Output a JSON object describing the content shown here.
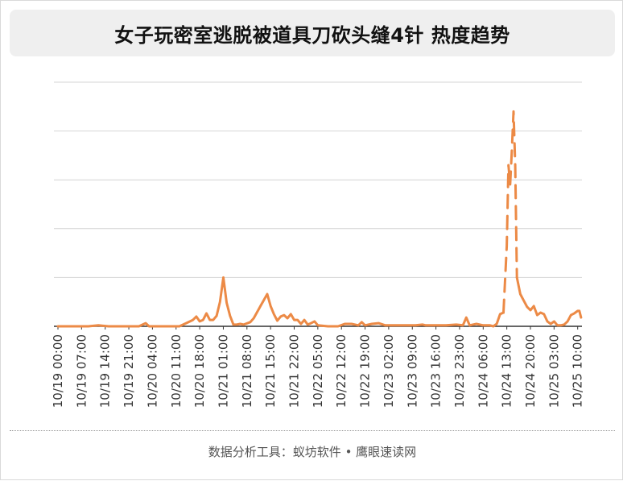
{
  "title": "女子玩密室逃脱被道具刀砍头缝4针 热度趋势",
  "footer": "数据分析工具：蚁坊软件 • 鹰眼速读网",
  "colors": {
    "line": "#ec8a46",
    "grid": "#d4d4d4",
    "axis": "#333333",
    "title_bg": "#efefef"
  },
  "chart_data": {
    "type": "line",
    "title": "女子玩密室逃脱被道具刀砍头缝4针 热度趋势",
    "xlabel": "",
    "ylabel": "",
    "ylim": [
      0,
      100
    ],
    "grid": true,
    "y_tick_labels_shown": false,
    "x_tick_labels": [
      "10/19 00:00",
      "10/19 07:00",
      "10/19 14:00",
      "10/19 21:00",
      "10/20 04:00",
      "10/20 11:00",
      "10/20 18:00",
      "10/21 01:00",
      "10/21 08:00",
      "10/21 15:00",
      "10/21 22:00",
      "10/22 05:00",
      "10/22 12:00",
      "10/22 19:00",
      "10/23 02:00",
      "10/23 09:00",
      "10/23 16:00",
      "10/23 23:00",
      "10/24 06:00",
      "10/24 13:00",
      "10/24 20:00",
      "10/25 03:00",
      "10/25 10:00"
    ],
    "series": [
      {
        "style": "solid",
        "points": [
          {
            "x": "10/19 00:00",
            "y": 0
          },
          {
            "x": "10/19 03:00",
            "y": 0
          },
          {
            "x": "10/19 06:00",
            "y": 0
          },
          {
            "x": "10/19 09:00",
            "y": 0
          },
          {
            "x": "10/19 12:00",
            "y": 0.4
          },
          {
            "x": "10/19 15:00",
            "y": 0
          },
          {
            "x": "10/19 18:00",
            "y": 0
          },
          {
            "x": "10/19 21:00",
            "y": 0
          },
          {
            "x": "10/20 00:00",
            "y": 0
          },
          {
            "x": "10/20 02:00",
            "y": 1.3
          },
          {
            "x": "10/20 03:00",
            "y": 0
          },
          {
            "x": "10/20 06:00",
            "y": 0
          },
          {
            "x": "10/20 09:00",
            "y": 0
          },
          {
            "x": "10/20 12:00",
            "y": 0
          },
          {
            "x": "10/20 14:00",
            "y": 1.3
          },
          {
            "x": "10/20 16:00",
            "y": 2.6
          },
          {
            "x": "10/20 17:00",
            "y": 4
          },
          {
            "x": "10/20 18:00",
            "y": 2
          },
          {
            "x": "10/20 19:00",
            "y": 2.6
          },
          {
            "x": "10/20 20:00",
            "y": 5.3
          },
          {
            "x": "10/20 21:00",
            "y": 2.6
          },
          {
            "x": "10/20 22:00",
            "y": 2.6
          },
          {
            "x": "10/20 23:00",
            "y": 4.3
          },
          {
            "x": "10/21 00:00",
            "y": 10
          },
          {
            "x": "10/21 01:00",
            "y": 20
          },
          {
            "x": "10/21 02:00",
            "y": 9.6
          },
          {
            "x": "10/21 03:00",
            "y": 4.3
          },
          {
            "x": "10/21 04:00",
            "y": 0.7
          },
          {
            "x": "10/21 05:00",
            "y": 0.7
          },
          {
            "x": "10/21 06:00",
            "y": 1
          },
          {
            "x": "10/21 07:00",
            "y": 0.7
          },
          {
            "x": "10/21 09:00",
            "y": 1.7
          },
          {
            "x": "10/21 10:00",
            "y": 3.3
          },
          {
            "x": "10/21 12:00",
            "y": 8.3
          },
          {
            "x": "10/21 14:00",
            "y": 13.2
          },
          {
            "x": "10/21 15:00",
            "y": 8.3
          },
          {
            "x": "10/21 16:00",
            "y": 5
          },
          {
            "x": "10/21 17:00",
            "y": 2.3
          },
          {
            "x": "10/21 18:00",
            "y": 4
          },
          {
            "x": "10/21 19:00",
            "y": 4.6
          },
          {
            "x": "10/21 20:00",
            "y": 3.3
          },
          {
            "x": "10/21 21:00",
            "y": 5
          },
          {
            "x": "10/21 22:00",
            "y": 2.6
          },
          {
            "x": "10/21 23:00",
            "y": 2.6
          },
          {
            "x": "10/22 00:00",
            "y": 1
          },
          {
            "x": "10/22 01:00",
            "y": 2.6
          },
          {
            "x": "10/22 02:00",
            "y": 0.7
          },
          {
            "x": "10/22 03:00",
            "y": 1.3
          },
          {
            "x": "10/22 04:00",
            "y": 2
          },
          {
            "x": "10/22 05:00",
            "y": 0.4
          },
          {
            "x": "10/22 08:00",
            "y": 0
          },
          {
            "x": "10/22 11:00",
            "y": 0
          },
          {
            "x": "10/22 13:00",
            "y": 1
          },
          {
            "x": "10/22 15:00",
            "y": 1
          },
          {
            "x": "10/22 17:00",
            "y": 0.4
          },
          {
            "x": "10/22 18:00",
            "y": 1.7
          },
          {
            "x": "10/22 19:00",
            "y": 0.4
          },
          {
            "x": "10/22 21:00",
            "y": 1
          },
          {
            "x": "10/22 23:00",
            "y": 1.3
          },
          {
            "x": "10/23 01:00",
            "y": 0.4
          },
          {
            "x": "10/23 04:00",
            "y": 0.4
          },
          {
            "x": "10/23 07:00",
            "y": 0.4
          },
          {
            "x": "10/23 10:00",
            "y": 0.4
          },
          {
            "x": "10/23 12:00",
            "y": 0.7
          },
          {
            "x": "10/23 13:00",
            "y": 0.4
          },
          {
            "x": "10/23 16:00",
            "y": 0.4
          },
          {
            "x": "10/23 19:00",
            "y": 0.4
          },
          {
            "x": "10/23 22:00",
            "y": 0.7
          },
          {
            "x": "10/24 00:00",
            "y": 0.4
          },
          {
            "x": "10/24 01:00",
            "y": 3.6
          },
          {
            "x": "10/24 02:00",
            "y": 0.4
          },
          {
            "x": "10/24 04:00",
            "y": 1
          },
          {
            "x": "10/24 06:00",
            "y": 0.4
          },
          {
            "x": "10/24 08:00",
            "y": 0.4
          },
          {
            "x": "10/24 09:00",
            "y": 0
          },
          {
            "x": "10/24 10:00",
            "y": 1
          },
          {
            "x": "10/24 11:00",
            "y": 5
          },
          {
            "x": "10/24 12:00",
            "y": 5.6
          }
        ]
      },
      {
        "style": "dashed",
        "points": [
          {
            "x": "10/24 12:00",
            "y": 5.6
          },
          {
            "x": "10/24 13:00",
            "y": 33
          },
          {
            "x": "10/24 13:30",
            "y": 66
          },
          {
            "x": "10/24 14:00",
            "y": 58
          },
          {
            "x": "10/24 14:30",
            "y": 72
          },
          {
            "x": "10/24 15:00",
            "y": 88
          },
          {
            "x": "10/24 15:30",
            "y": 66
          },
          {
            "x": "10/24 16:00",
            "y": 20
          }
        ]
      },
      {
        "style": "solid",
        "points": [
          {
            "x": "10/24 16:00",
            "y": 20
          },
          {
            "x": "10/24 17:00",
            "y": 13.2
          },
          {
            "x": "10/24 18:00",
            "y": 10.6
          },
          {
            "x": "10/24 19:00",
            "y": 8
          },
          {
            "x": "10/24 20:00",
            "y": 6.6
          },
          {
            "x": "10/24 21:00",
            "y": 8.3
          },
          {
            "x": "10/24 22:00",
            "y": 4.6
          },
          {
            "x": "10/24 23:00",
            "y": 5.6
          },
          {
            "x": "10/25 00:00",
            "y": 5
          },
          {
            "x": "10/25 01:00",
            "y": 2
          },
          {
            "x": "10/25 02:00",
            "y": 1
          },
          {
            "x": "10/25 03:00",
            "y": 2
          },
          {
            "x": "10/25 04:00",
            "y": 0.4
          },
          {
            "x": "10/25 05:00",
            "y": 0.4
          },
          {
            "x": "10/25 06:00",
            "y": 0.7
          },
          {
            "x": "10/25 07:00",
            "y": 2
          },
          {
            "x": "10/25 08:00",
            "y": 4.6
          },
          {
            "x": "10/25 09:00",
            "y": 5.3
          },
          {
            "x": "10/25 10:00",
            "y": 6.3
          },
          {
            "x": "10/25 10:30",
            "y": 6.3
          },
          {
            "x": "10/25 11:00",
            "y": 3.6
          }
        ]
      }
    ]
  }
}
